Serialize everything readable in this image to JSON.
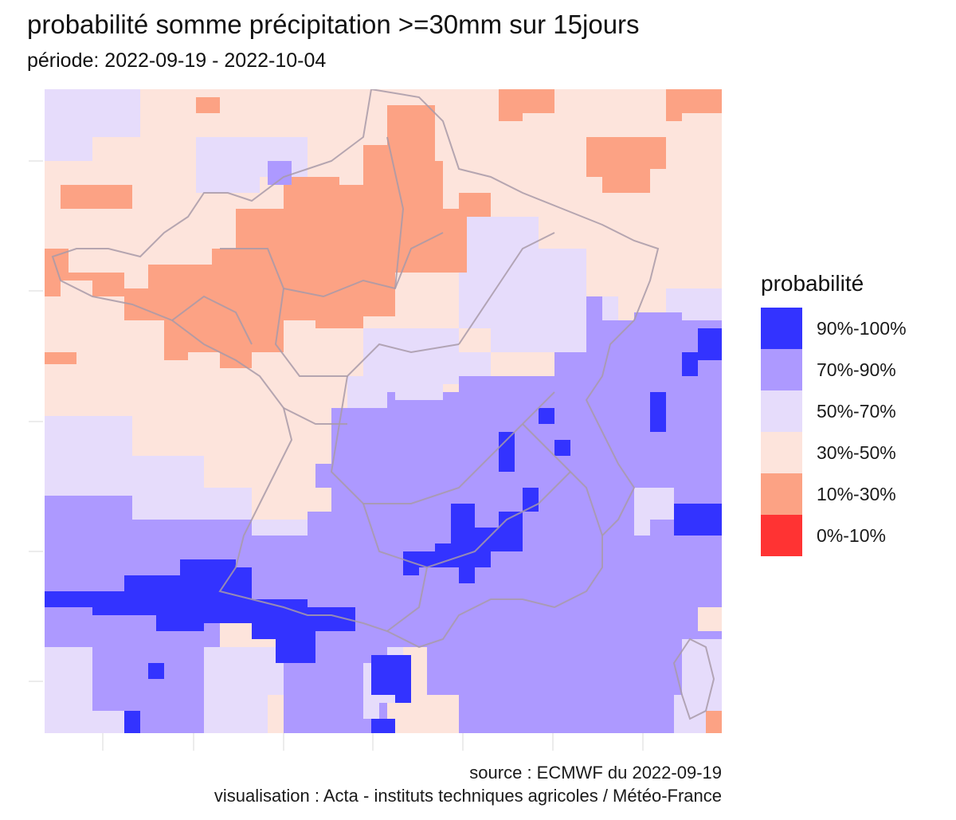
{
  "title": "probabilité somme précipitation >=30mm sur 15jours",
  "subtitle": "période: 2022-09-19 - 2022-10-04",
  "legend": {
    "title": "probabilité",
    "items": [
      {
        "label": "90%-100%",
        "color": "#3333ff"
      },
      {
        "label": "70%-90%",
        "color": "#ad99ff"
      },
      {
        "label": "50%-70%",
        "color": "#e6dcfb"
      },
      {
        "label": "30%-50%",
        "color": "#fde4dc"
      },
      {
        "label": "10%-30%",
        "color": "#fca284"
      },
      {
        "label": "0%-10%",
        "color": "#ff3333"
      }
    ]
  },
  "map": {
    "region": "France",
    "colors": {
      "p90_100": "#3333ff",
      "p70_90": "#ad99ff",
      "p50_70": "#e6dcfb",
      "p30_50": "#fde4dc",
      "p10_30": "#fca284",
      "p0_10": "#ff3333",
      "border": "#a89aa8"
    }
  },
  "caption": {
    "source": "source : ECMWF du 2022-09-19",
    "visualisation": "visualisation : Acta - instituts techniques agricoles / Météo-France"
  }
}
